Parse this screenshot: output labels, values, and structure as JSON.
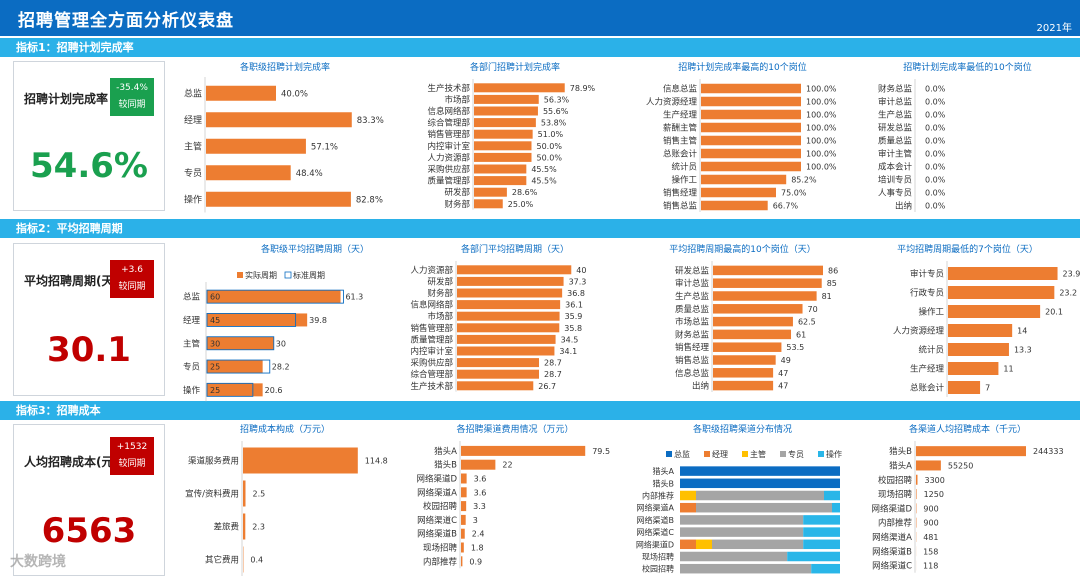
{
  "header": {
    "title": "招聘管理全方面分析仪表盘",
    "year": "2021年"
  },
  "sections": [
    {
      "bar_title": "指标1：招聘计划完成率",
      "kpi_label": "招聘计划完成率",
      "kpi_value": "54.6%",
      "badge_line1": "-35.4%",
      "badge_line2": "较同期",
      "badge_color": "#1aa04f",
      "value_color": "#1aa04f"
    },
    {
      "bar_title": "指标2：平均招聘周期",
      "kpi_label": "平均招聘周期(天)",
      "kpi_value": "30.1",
      "badge_line1": "+3.6",
      "badge_line2": "较同期",
      "badge_color": "#c00000",
      "value_color": "#c00000"
    },
    {
      "bar_title": "指标3：招聘成本",
      "kpi_label": "人均招聘成本(元)",
      "kpi_value": "6563",
      "badge_line1": "+1532",
      "badge_line2": "较同期",
      "badge_color": "#c00000",
      "value_color": "#c00000"
    }
  ],
  "colors": {
    "orange": "#ed7d31",
    "blue": "#0b6cc2",
    "yellow": "#ffc000",
    "gray": "#a5a5a5",
    "cyan": "#29b6e8"
  },
  "watermark": "大数跨境",
  "chart_data": [
    {
      "id": "c11",
      "type": "bar",
      "title": "各职级招聘计划完成率",
      "categories": [
        "总监",
        "经理",
        "主管",
        "专员",
        "操作"
      ],
      "values": [
        40.0,
        83.3,
        57.1,
        48.4,
        82.8
      ],
      "labels": [
        "40.0%",
        "83.3%",
        "57.1%",
        "48.4%",
        "82.8%"
      ],
      "xmax": 100
    },
    {
      "id": "c12",
      "type": "bar",
      "title": "各部门招聘计划完成率",
      "categories": [
        "生产技术部",
        "市场部",
        "信息网络部",
        "综合管理部",
        "销售管理部",
        "内控审计室",
        "人力资源部",
        "采购供应部",
        "质量管理部",
        "研发部",
        "财务部"
      ],
      "values": [
        78.9,
        56.3,
        55.6,
        53.8,
        51.0,
        50.0,
        50.0,
        45.5,
        45.5,
        28.6,
        25.0
      ],
      "labels": [
        "78.9%",
        "56.3%",
        "55.6%",
        "53.8%",
        "51.0%",
        "50.0%",
        "50.0%",
        "45.5%",
        "45.5%",
        "28.6%",
        "25.0%"
      ],
      "xmax": 100
    },
    {
      "id": "c13",
      "type": "bar",
      "title": "招聘计划完成率最高的10个岗位",
      "categories": [
        "信息总监",
        "人力资源经理",
        "生产经理",
        "薪酬主管",
        "销售主管",
        "总账会计",
        "统计员",
        "操作工",
        "销售经理",
        "销售总监"
      ],
      "values": [
        100,
        100,
        100,
        100,
        100,
        100,
        100,
        85.2,
        75.0,
        66.7
      ],
      "labels": [
        "100.0%",
        "100.0%",
        "100.0%",
        "100.0%",
        "100.0%",
        "100.0%",
        "100.0%",
        "85.2%",
        "75.0%",
        "66.7%"
      ],
      "xmax": 100
    },
    {
      "id": "c14",
      "type": "bar",
      "title": "招聘计划完成率最低的10个岗位",
      "categories": [
        "财务总监",
        "审计总监",
        "生产总监",
        "研发总监",
        "质量总监",
        "审计主管",
        "成本会计",
        "培训专员",
        "人事专员",
        "出纳"
      ],
      "values": [
        0,
        0,
        0,
        0,
        0,
        0,
        0,
        0,
        0,
        0
      ],
      "labels": [
        "0.0%",
        "0.0%",
        "0.0%",
        "0.0%",
        "0.0%",
        "0.0%",
        "0.0%",
        "0.0%",
        "0.0%",
        "0.0%"
      ],
      "xmax": 100
    },
    {
      "id": "c21",
      "type": "bar",
      "title": "各职级平均招聘周期（天）",
      "legend": [
        "实际周期",
        "标准周期"
      ],
      "categories": [
        "总监",
        "经理",
        "主管",
        "专员",
        "操作"
      ],
      "values": [
        61.3,
        39.8,
        30,
        28.2,
        20.6
      ],
      "standard": [
        60,
        45,
        30,
        25,
        25
      ],
      "xmax": 62
    },
    {
      "id": "c22",
      "type": "bar",
      "title": "各部门平均招聘周期（天）",
      "categories": [
        "人力资源部",
        "研发部",
        "财务部",
        "信息网络部",
        "市场部",
        "销售管理部",
        "质量管理部",
        "内控审计室",
        "采购供应部",
        "综合管理部",
        "生产技术部"
      ],
      "values": [
        40,
        37.3,
        36.8,
        36.1,
        35.9,
        35.8,
        34.5,
        34.1,
        28.7,
        28.7,
        26.7
      ],
      "labels": [
        "40",
        "37.3",
        "36.8",
        "36.1",
        "35.9",
        "35.8",
        "34.5",
        "34.1",
        "28.7",
        "28.7",
        "26.7"
      ],
      "xmax": 42
    },
    {
      "id": "c23",
      "type": "bar",
      "title": "平均招聘周期最高的10个岗位（天）",
      "categories": [
        "研发总监",
        "审计总监",
        "生产总监",
        "质量总监",
        "市场总监",
        "财务总监",
        "销售经理",
        "销售总监",
        "信息总监",
        "出纳"
      ],
      "values": [
        86,
        85,
        81,
        70,
        62.5,
        61,
        53.5,
        49,
        47,
        47
      ],
      "labels": [
        "86",
        "85",
        "81",
        "70",
        "62.5",
        "61",
        "53.5",
        "49",
        "47",
        "47"
      ],
      "xmax": 86
    },
    {
      "id": "c24",
      "type": "bar",
      "title": "平均招聘周期最低的7个岗位（天）",
      "categories": [
        "审计专员",
        "行政专员",
        "操作工",
        "人力资源经理",
        "统计员",
        "生产经理",
        "总账会计"
      ],
      "values": [
        23.9,
        23.2,
        20.1,
        14,
        13.3,
        11,
        7
      ],
      "labels": [
        "23.9",
        "23.2",
        "20.1",
        "14",
        "13.3",
        "11",
        "7"
      ],
      "xmax": 24
    },
    {
      "id": "c31",
      "type": "bar",
      "title": "招聘成本构成（万元）",
      "categories": [
        "渠道服务费用",
        "宣传/资料费用",
        "差旅费",
        "其它费用"
      ],
      "values": [
        114.8,
        2.5,
        2.3,
        0.4
      ],
      "labels": [
        "114.8",
        "2.5",
        "2.3",
        "0.4"
      ],
      "xmax": 115
    },
    {
      "id": "c32",
      "type": "bar",
      "title": "各招聘渠道费用情况（万元）",
      "categories": [
        "猎头A",
        "猎头B",
        "网络渠道D",
        "网络渠道A",
        "校园招聘",
        "网络渠道C",
        "网络渠道B",
        "现场招聘",
        "内部推荐"
      ],
      "values": [
        79.5,
        22,
        3.6,
        3.6,
        3.3,
        3,
        2.4,
        1.8,
        0.9
      ],
      "labels": [
        "79.5",
        "22",
        "3.6",
        "3.6",
        "3.3",
        "3",
        "2.4",
        "1.8",
        "0.9"
      ],
      "xmax": 80
    },
    {
      "id": "c33",
      "type": "stacked-bar",
      "title": "各职级招聘渠道分布情况",
      "legend": [
        "总监",
        "经理",
        "主管",
        "专员",
        "操作"
      ],
      "categories": [
        "猎头A",
        "猎头B",
        "内部推荐",
        "网络渠道A",
        "网络渠道B",
        "网络渠道C",
        "网络渠道D",
        "现场招聘",
        "校园招聘"
      ],
      "series": [
        {
          "name": "总监",
          "values": [
            100,
            100,
            0,
            0,
            0,
            0,
            0,
            0,
            0
          ]
        },
        {
          "name": "经理",
          "values": [
            0,
            0,
            0,
            10,
            0,
            0,
            10,
            0,
            0
          ]
        },
        {
          "name": "主管",
          "values": [
            0,
            0,
            10,
            0,
            0,
            0,
            10,
            0,
            0
          ]
        },
        {
          "name": "专员",
          "values": [
            0,
            0,
            80,
            85,
            77,
            77,
            57,
            67,
            82
          ]
        },
        {
          "name": "操作",
          "values": [
            0,
            0,
            10,
            5,
            23,
            23,
            23,
            33,
            18
          ]
        }
      ]
    },
    {
      "id": "c34",
      "type": "bar",
      "title": "各渠道人均招聘成本（千元）",
      "categories": [
        "猎头B",
        "猎头A",
        "校园招聘",
        "现场招聘",
        "网络渠道D",
        "内部推荐",
        "网络渠道A",
        "网络渠道B",
        "网络渠道C"
      ],
      "values": [
        244333,
        55250,
        3300,
        1250,
        900,
        900,
        481,
        158,
        118
      ],
      "labels": [
        "244333",
        "55250",
        "3300",
        "1250",
        "900",
        "900",
        "481",
        "158",
        "118"
      ],
      "xmax": 244333
    }
  ]
}
